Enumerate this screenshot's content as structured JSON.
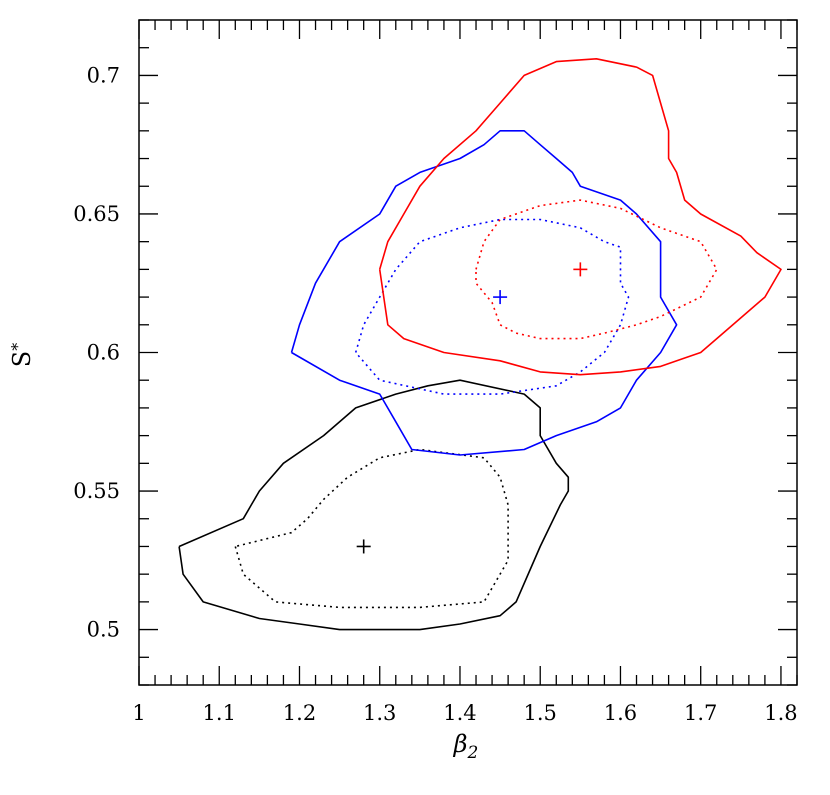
{
  "chart_data": {
    "type": "contour",
    "title": "",
    "xlabel": "β",
    "xlabel_sub": "2",
    "ylabel": "S",
    "ylabel_sup": "*",
    "xlim": [
      1.0,
      1.82
    ],
    "ylim": [
      0.48,
      0.72
    ],
    "grid": false,
    "x_major_ticks": [
      1.0,
      1.1,
      1.2,
      1.3,
      1.4,
      1.5,
      1.6,
      1.7,
      1.8
    ],
    "x_tick_labels": [
      "1",
      "1.1",
      "1.2",
      "1.3",
      "1.4",
      "1.5",
      "1.6",
      "1.7",
      "1.8"
    ],
    "x_minor_step": 0.02,
    "y_major_ticks": [
      0.5,
      0.55,
      0.6,
      0.65,
      0.7
    ],
    "y_tick_labels": [
      "0.5",
      "0.55",
      "0.6",
      "0.65",
      "0.7"
    ],
    "y_minor_step": 0.01,
    "colors": {
      "black": "#000000",
      "blue": "#0000ff",
      "red": "#ff0000"
    },
    "series": [
      {
        "color": "#000000",
        "best_fit": [
          1.28,
          0.53
        ],
        "outer": [
          [
            1.05,
            0.53
          ],
          [
            1.055,
            0.52
          ],
          [
            1.08,
            0.51
          ],
          [
            1.15,
            0.504
          ],
          [
            1.2,
            0.502
          ],
          [
            1.25,
            0.5
          ],
          [
            1.29,
            0.5
          ],
          [
            1.35,
            0.5
          ],
          [
            1.4,
            0.502
          ],
          [
            1.45,
            0.505
          ],
          [
            1.47,
            0.51
          ],
          [
            1.5,
            0.53
          ],
          [
            1.525,
            0.545
          ],
          [
            1.535,
            0.55
          ],
          [
            1.535,
            0.555
          ],
          [
            1.52,
            0.56
          ],
          [
            1.5,
            0.57
          ],
          [
            1.5,
            0.58
          ],
          [
            1.48,
            0.585
          ],
          [
            1.4,
            0.59
          ],
          [
            1.36,
            0.588
          ],
          [
            1.32,
            0.585
          ],
          [
            1.27,
            0.58
          ],
          [
            1.23,
            0.57
          ],
          [
            1.18,
            0.56
          ],
          [
            1.15,
            0.55
          ],
          [
            1.14,
            0.545
          ],
          [
            1.13,
            0.54
          ],
          [
            1.05,
            0.53
          ]
        ],
        "inner": [
          [
            1.12,
            0.53
          ],
          [
            1.13,
            0.52
          ],
          [
            1.17,
            0.51
          ],
          [
            1.25,
            0.508
          ],
          [
            1.35,
            0.508
          ],
          [
            1.43,
            0.51
          ],
          [
            1.46,
            0.525
          ],
          [
            1.46,
            0.545
          ],
          [
            1.45,
            0.555
          ],
          [
            1.43,
            0.562
          ],
          [
            1.35,
            0.565
          ],
          [
            1.3,
            0.562
          ],
          [
            1.26,
            0.555
          ],
          [
            1.23,
            0.547
          ],
          [
            1.21,
            0.54
          ],
          [
            1.19,
            0.535
          ],
          [
            1.12,
            0.53
          ]
        ]
      },
      {
        "color": "#0000ff",
        "best_fit": [
          1.45,
          0.62
        ],
        "outer": [
          [
            1.19,
            0.6
          ],
          [
            1.2,
            0.61
          ],
          [
            1.22,
            0.625
          ],
          [
            1.25,
            0.64
          ],
          [
            1.3,
            0.65
          ],
          [
            1.32,
            0.66
          ],
          [
            1.35,
            0.665
          ],
          [
            1.4,
            0.67
          ],
          [
            1.43,
            0.675
          ],
          [
            1.45,
            0.68
          ],
          [
            1.48,
            0.68
          ],
          [
            1.5,
            0.675
          ],
          [
            1.52,
            0.67
          ],
          [
            1.54,
            0.665
          ],
          [
            1.55,
            0.66
          ],
          [
            1.6,
            0.655
          ],
          [
            1.62,
            0.65
          ],
          [
            1.65,
            0.64
          ],
          [
            1.65,
            0.63
          ],
          [
            1.65,
            0.62
          ],
          [
            1.67,
            0.61
          ],
          [
            1.65,
            0.6
          ],
          [
            1.62,
            0.59
          ],
          [
            1.6,
            0.58
          ],
          [
            1.57,
            0.575
          ],
          [
            1.52,
            0.57
          ],
          [
            1.48,
            0.565
          ],
          [
            1.4,
            0.563
          ],
          [
            1.34,
            0.565
          ],
          [
            1.32,
            0.575
          ],
          [
            1.3,
            0.585
          ],
          [
            1.25,
            0.59
          ],
          [
            1.19,
            0.6
          ]
        ],
        "inner": [
          [
            1.27,
            0.6
          ],
          [
            1.28,
            0.61
          ],
          [
            1.3,
            0.62
          ],
          [
            1.32,
            0.63
          ],
          [
            1.35,
            0.64
          ],
          [
            1.4,
            0.645
          ],
          [
            1.45,
            0.648
          ],
          [
            1.5,
            0.648
          ],
          [
            1.55,
            0.645
          ],
          [
            1.58,
            0.64
          ],
          [
            1.6,
            0.638
          ],
          [
            1.6,
            0.625
          ],
          [
            1.61,
            0.62
          ],
          [
            1.6,
            0.61
          ],
          [
            1.58,
            0.6
          ],
          [
            1.55,
            0.593
          ],
          [
            1.52,
            0.588
          ],
          [
            1.45,
            0.585
          ],
          [
            1.38,
            0.585
          ],
          [
            1.3,
            0.59
          ],
          [
            1.27,
            0.6
          ]
        ]
      },
      {
        "color": "#ff0000",
        "best_fit": [
          1.55,
          0.63
        ],
        "outer": [
          [
            1.3,
            0.63
          ],
          [
            1.31,
            0.64
          ],
          [
            1.33,
            0.65
          ],
          [
            1.35,
            0.66
          ],
          [
            1.38,
            0.67
          ],
          [
            1.42,
            0.68
          ],
          [
            1.45,
            0.69
          ],
          [
            1.48,
            0.7
          ],
          [
            1.52,
            0.705
          ],
          [
            1.57,
            0.706
          ],
          [
            1.62,
            0.703
          ],
          [
            1.64,
            0.7
          ],
          [
            1.65,
            0.69
          ],
          [
            1.66,
            0.68
          ],
          [
            1.66,
            0.67
          ],
          [
            1.67,
            0.665
          ],
          [
            1.68,
            0.655
          ],
          [
            1.7,
            0.65
          ],
          [
            1.75,
            0.642
          ],
          [
            1.77,
            0.636
          ],
          [
            1.8,
            0.63
          ],
          [
            1.78,
            0.62
          ],
          [
            1.76,
            0.615
          ],
          [
            1.72,
            0.605
          ],
          [
            1.7,
            0.6
          ],
          [
            1.68,
            0.598
          ],
          [
            1.65,
            0.595
          ],
          [
            1.6,
            0.593
          ],
          [
            1.55,
            0.592
          ],
          [
            1.5,
            0.593
          ],
          [
            1.45,
            0.597
          ],
          [
            1.38,
            0.6
          ],
          [
            1.33,
            0.605
          ],
          [
            1.31,
            0.61
          ],
          [
            1.3,
            0.63
          ]
        ],
        "inner": [
          [
            1.42,
            0.63
          ],
          [
            1.43,
            0.64
          ],
          [
            1.45,
            0.648
          ],
          [
            1.5,
            0.653
          ],
          [
            1.55,
            0.655
          ],
          [
            1.6,
            0.652
          ],
          [
            1.65,
            0.645
          ],
          [
            1.7,
            0.64
          ],
          [
            1.72,
            0.63
          ],
          [
            1.7,
            0.62
          ],
          [
            1.65,
            0.613
          ],
          [
            1.62,
            0.61
          ],
          [
            1.58,
            0.607
          ],
          [
            1.55,
            0.605
          ],
          [
            1.5,
            0.605
          ],
          [
            1.47,
            0.607
          ],
          [
            1.45,
            0.61
          ],
          [
            1.44,
            0.618
          ],
          [
            1.42,
            0.625
          ],
          [
            1.42,
            0.63
          ]
        ]
      }
    ]
  }
}
